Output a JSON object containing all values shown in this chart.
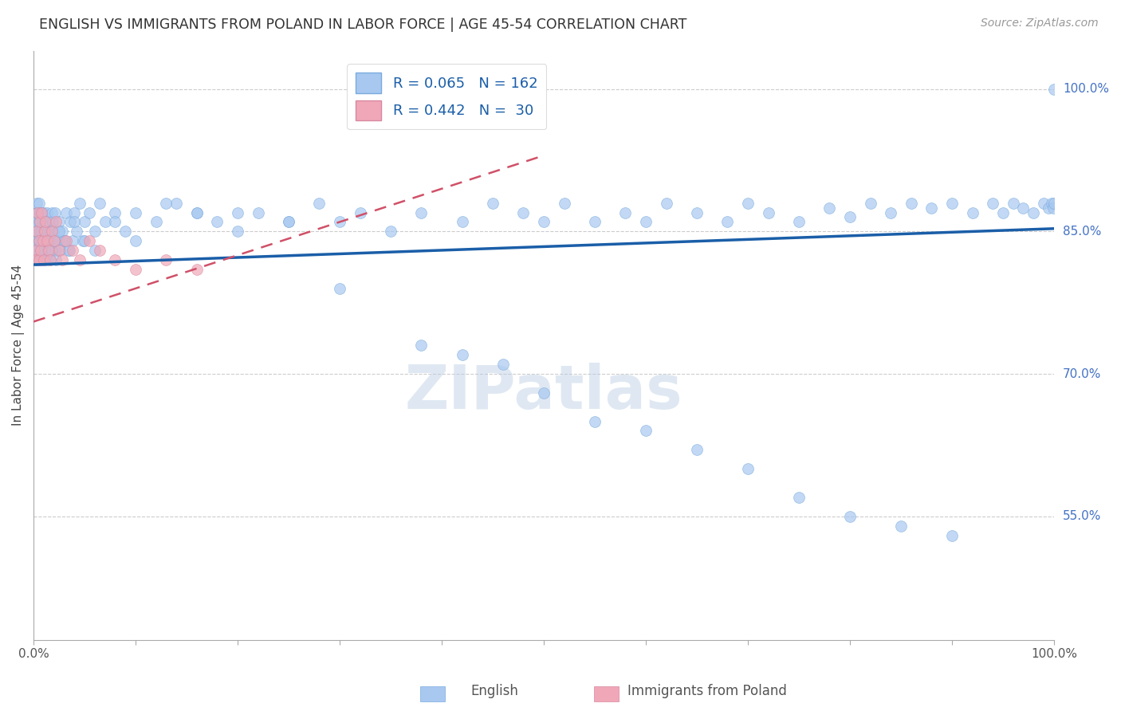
{
  "title": "ENGLISH VS IMMIGRANTS FROM POLAND IN LABOR FORCE | AGE 45-54 CORRELATION CHART",
  "source": "Source: ZipAtlas.com",
  "ylabel": "In Labor Force | Age 45-54",
  "ytick_labels": [
    "55.0%",
    "70.0%",
    "85.0%",
    "100.0%"
  ],
  "ytick_values": [
    0.55,
    0.7,
    0.85,
    1.0
  ],
  "xlim": [
    0.0,
    1.0
  ],
  "ylim": [
    0.42,
    1.04
  ],
  "english_color": "#a8c8f0",
  "poland_color": "#f0a8b8",
  "trend_english_color": "#1a5ea8",
  "trend_poland_color": "#d05068",
  "legend_r_english": "R = 0.065",
  "legend_n_english": "N = 162",
  "legend_r_poland": "R = 0.442",
  "legend_n_poland": "N =  30",
  "watermark": "ZIPatlas",
  "english_trend_x": [
    0.0,
    1.0
  ],
  "english_trend_y": [
    0.815,
    0.853
  ],
  "poland_trend_x": [
    0.0,
    0.5
  ],
  "poland_trend_y": [
    0.755,
    0.93
  ],
  "english_x": [
    0.001,
    0.001,
    0.002,
    0.002,
    0.002,
    0.003,
    0.003,
    0.003,
    0.003,
    0.004,
    0.004,
    0.004,
    0.004,
    0.005,
    0.005,
    0.005,
    0.005,
    0.006,
    0.006,
    0.006,
    0.006,
    0.007,
    0.007,
    0.007,
    0.008,
    0.008,
    0.008,
    0.009,
    0.009,
    0.009,
    0.01,
    0.01,
    0.01,
    0.011,
    0.011,
    0.012,
    0.012,
    0.013,
    0.013,
    0.014,
    0.014,
    0.015,
    0.015,
    0.016,
    0.016,
    0.017,
    0.018,
    0.018,
    0.019,
    0.02,
    0.02,
    0.021,
    0.022,
    0.023,
    0.024,
    0.025,
    0.026,
    0.028,
    0.03,
    0.032,
    0.034,
    0.036,
    0.038,
    0.04,
    0.042,
    0.045,
    0.048,
    0.05,
    0.055,
    0.06,
    0.065,
    0.07,
    0.08,
    0.09,
    0.1,
    0.12,
    0.14,
    0.16,
    0.18,
    0.2,
    0.22,
    0.25,
    0.28,
    0.3,
    0.32,
    0.35,
    0.38,
    0.42,
    0.45,
    0.48,
    0.5,
    0.52,
    0.55,
    0.58,
    0.6,
    0.62,
    0.65,
    0.68,
    0.7,
    0.72,
    0.75,
    0.78,
    0.8,
    0.82,
    0.84,
    0.86,
    0.88,
    0.9,
    0.92,
    0.94,
    0.95,
    0.96,
    0.97,
    0.98,
    0.99,
    0.995,
    0.998,
    0.999,
    1.0,
    1.0,
    0.003,
    0.004,
    0.005,
    0.006,
    0.007,
    0.008,
    0.009,
    0.01,
    0.011,
    0.012,
    0.013,
    0.014,
    0.015,
    0.016,
    0.018,
    0.02,
    0.022,
    0.025,
    0.03,
    0.035,
    0.04,
    0.05,
    0.06,
    0.08,
    0.1,
    0.13,
    0.16,
    0.2,
    0.25,
    0.3,
    0.38,
    0.42,
    0.46,
    0.5,
    0.55,
    0.6,
    0.65,
    0.7,
    0.75,
    0.8,
    0.85,
    0.9
  ],
  "english_y": [
    0.85,
    0.83,
    0.84,
    0.86,
    0.87,
    0.82,
    0.84,
    0.86,
    0.88,
    0.83,
    0.85,
    0.87,
    0.84,
    0.82,
    0.84,
    0.86,
    0.88,
    0.83,
    0.85,
    0.87,
    0.84,
    0.82,
    0.84,
    0.86,
    0.83,
    0.85,
    0.87,
    0.84,
    0.82,
    0.86,
    0.83,
    0.85,
    0.87,
    0.84,
    0.86,
    0.83,
    0.85,
    0.84,
    0.87,
    0.83,
    0.85,
    0.84,
    0.86,
    0.83,
    0.85,
    0.84,
    0.87,
    0.83,
    0.86,
    0.84,
    0.85,
    0.87,
    0.83,
    0.85,
    0.84,
    0.86,
    0.83,
    0.85,
    0.84,
    0.87,
    0.83,
    0.86,
    0.84,
    0.87,
    0.85,
    0.88,
    0.84,
    0.86,
    0.87,
    0.85,
    0.88,
    0.86,
    0.87,
    0.85,
    0.87,
    0.86,
    0.88,
    0.87,
    0.86,
    0.85,
    0.87,
    0.86,
    0.88,
    0.86,
    0.87,
    0.85,
    0.87,
    0.86,
    0.88,
    0.87,
    0.86,
    0.88,
    0.86,
    0.87,
    0.86,
    0.88,
    0.87,
    0.86,
    0.88,
    0.87,
    0.86,
    0.875,
    0.865,
    0.88,
    0.87,
    0.88,
    0.875,
    0.88,
    0.87,
    0.88,
    0.87,
    0.88,
    0.875,
    0.87,
    0.88,
    0.875,
    0.88,
    0.875,
    0.88,
    1.0,
    0.82,
    0.83,
    0.84,
    0.82,
    0.83,
    0.84,
    0.82,
    0.83,
    0.82,
    0.84,
    0.82,
    0.83,
    0.84,
    0.82,
    0.83,
    0.84,
    0.82,
    0.85,
    0.84,
    0.83,
    0.86,
    0.84,
    0.83,
    0.86,
    0.84,
    0.88,
    0.87,
    0.87,
    0.86,
    0.79,
    0.73,
    0.72,
    0.71,
    0.68,
    0.65,
    0.64,
    0.62,
    0.6,
    0.57,
    0.55,
    0.54,
    0.53
  ],
  "poland_x": [
    0.001,
    0.002,
    0.003,
    0.004,
    0.005,
    0.005,
    0.006,
    0.007,
    0.008,
    0.009,
    0.01,
    0.011,
    0.012,
    0.013,
    0.015,
    0.016,
    0.018,
    0.02,
    0.022,
    0.025,
    0.028,
    0.032,
    0.038,
    0.045,
    0.055,
    0.065,
    0.08,
    0.1,
    0.13,
    0.16
  ],
  "poland_y": [
    0.83,
    0.82,
    0.85,
    0.87,
    0.84,
    0.82,
    0.86,
    0.83,
    0.87,
    0.84,
    0.82,
    0.85,
    0.86,
    0.84,
    0.83,
    0.82,
    0.85,
    0.84,
    0.86,
    0.83,
    0.82,
    0.84,
    0.83,
    0.82,
    0.84,
    0.83,
    0.82,
    0.81,
    0.82,
    0.81
  ]
}
